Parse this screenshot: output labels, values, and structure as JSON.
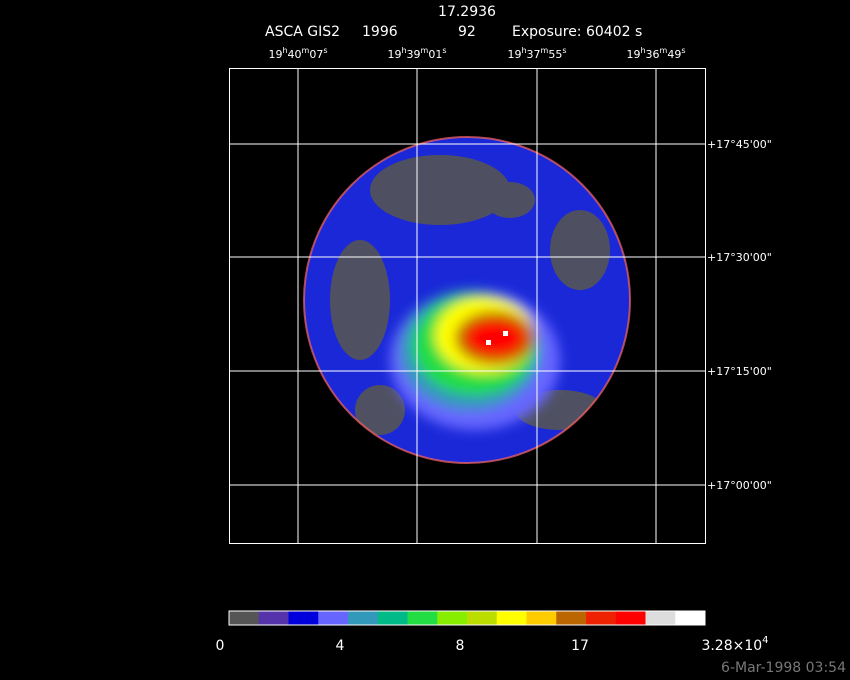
{
  "header": {
    "title": "17.2936",
    "instrument": "ASCA GIS2",
    "year": "1996",
    "number": "92",
    "exposure": "Exposure: 60402 s"
  },
  "ra_labels": [
    [
      "19",
      "h",
      "40",
      "m",
      "07",
      "s"
    ],
    [
      "19",
      "h",
      "39",
      "m",
      "01",
      "s"
    ],
    [
      "19",
      "h",
      "37",
      "m",
      "55",
      "s"
    ],
    [
      "19",
      "h",
      "36",
      "m",
      "49",
      "s"
    ]
  ],
  "dec_labels": [
    "+17°45'00\"",
    "+17°30'00\"",
    "+17°15'00\"",
    "+17°00'00\""
  ],
  "colorbar": {
    "colors": [
      "#555555",
      "#5533aa",
      "#0000dd",
      "#6666ff",
      "#3399bb",
      "#00bb88",
      "#22dd44",
      "#88ee00",
      "#bbdd00",
      "#ffff00",
      "#ffcc00",
      "#bb6600",
      "#ee2200",
      "#ff0000",
      "#dddddd",
      "#ffffff"
    ],
    "labels": [
      "0",
      "4",
      "8",
      "17",
      "3.28×10"
    ],
    "exponent": "4"
  },
  "footer": "6-Mar-1998 03:54"
}
